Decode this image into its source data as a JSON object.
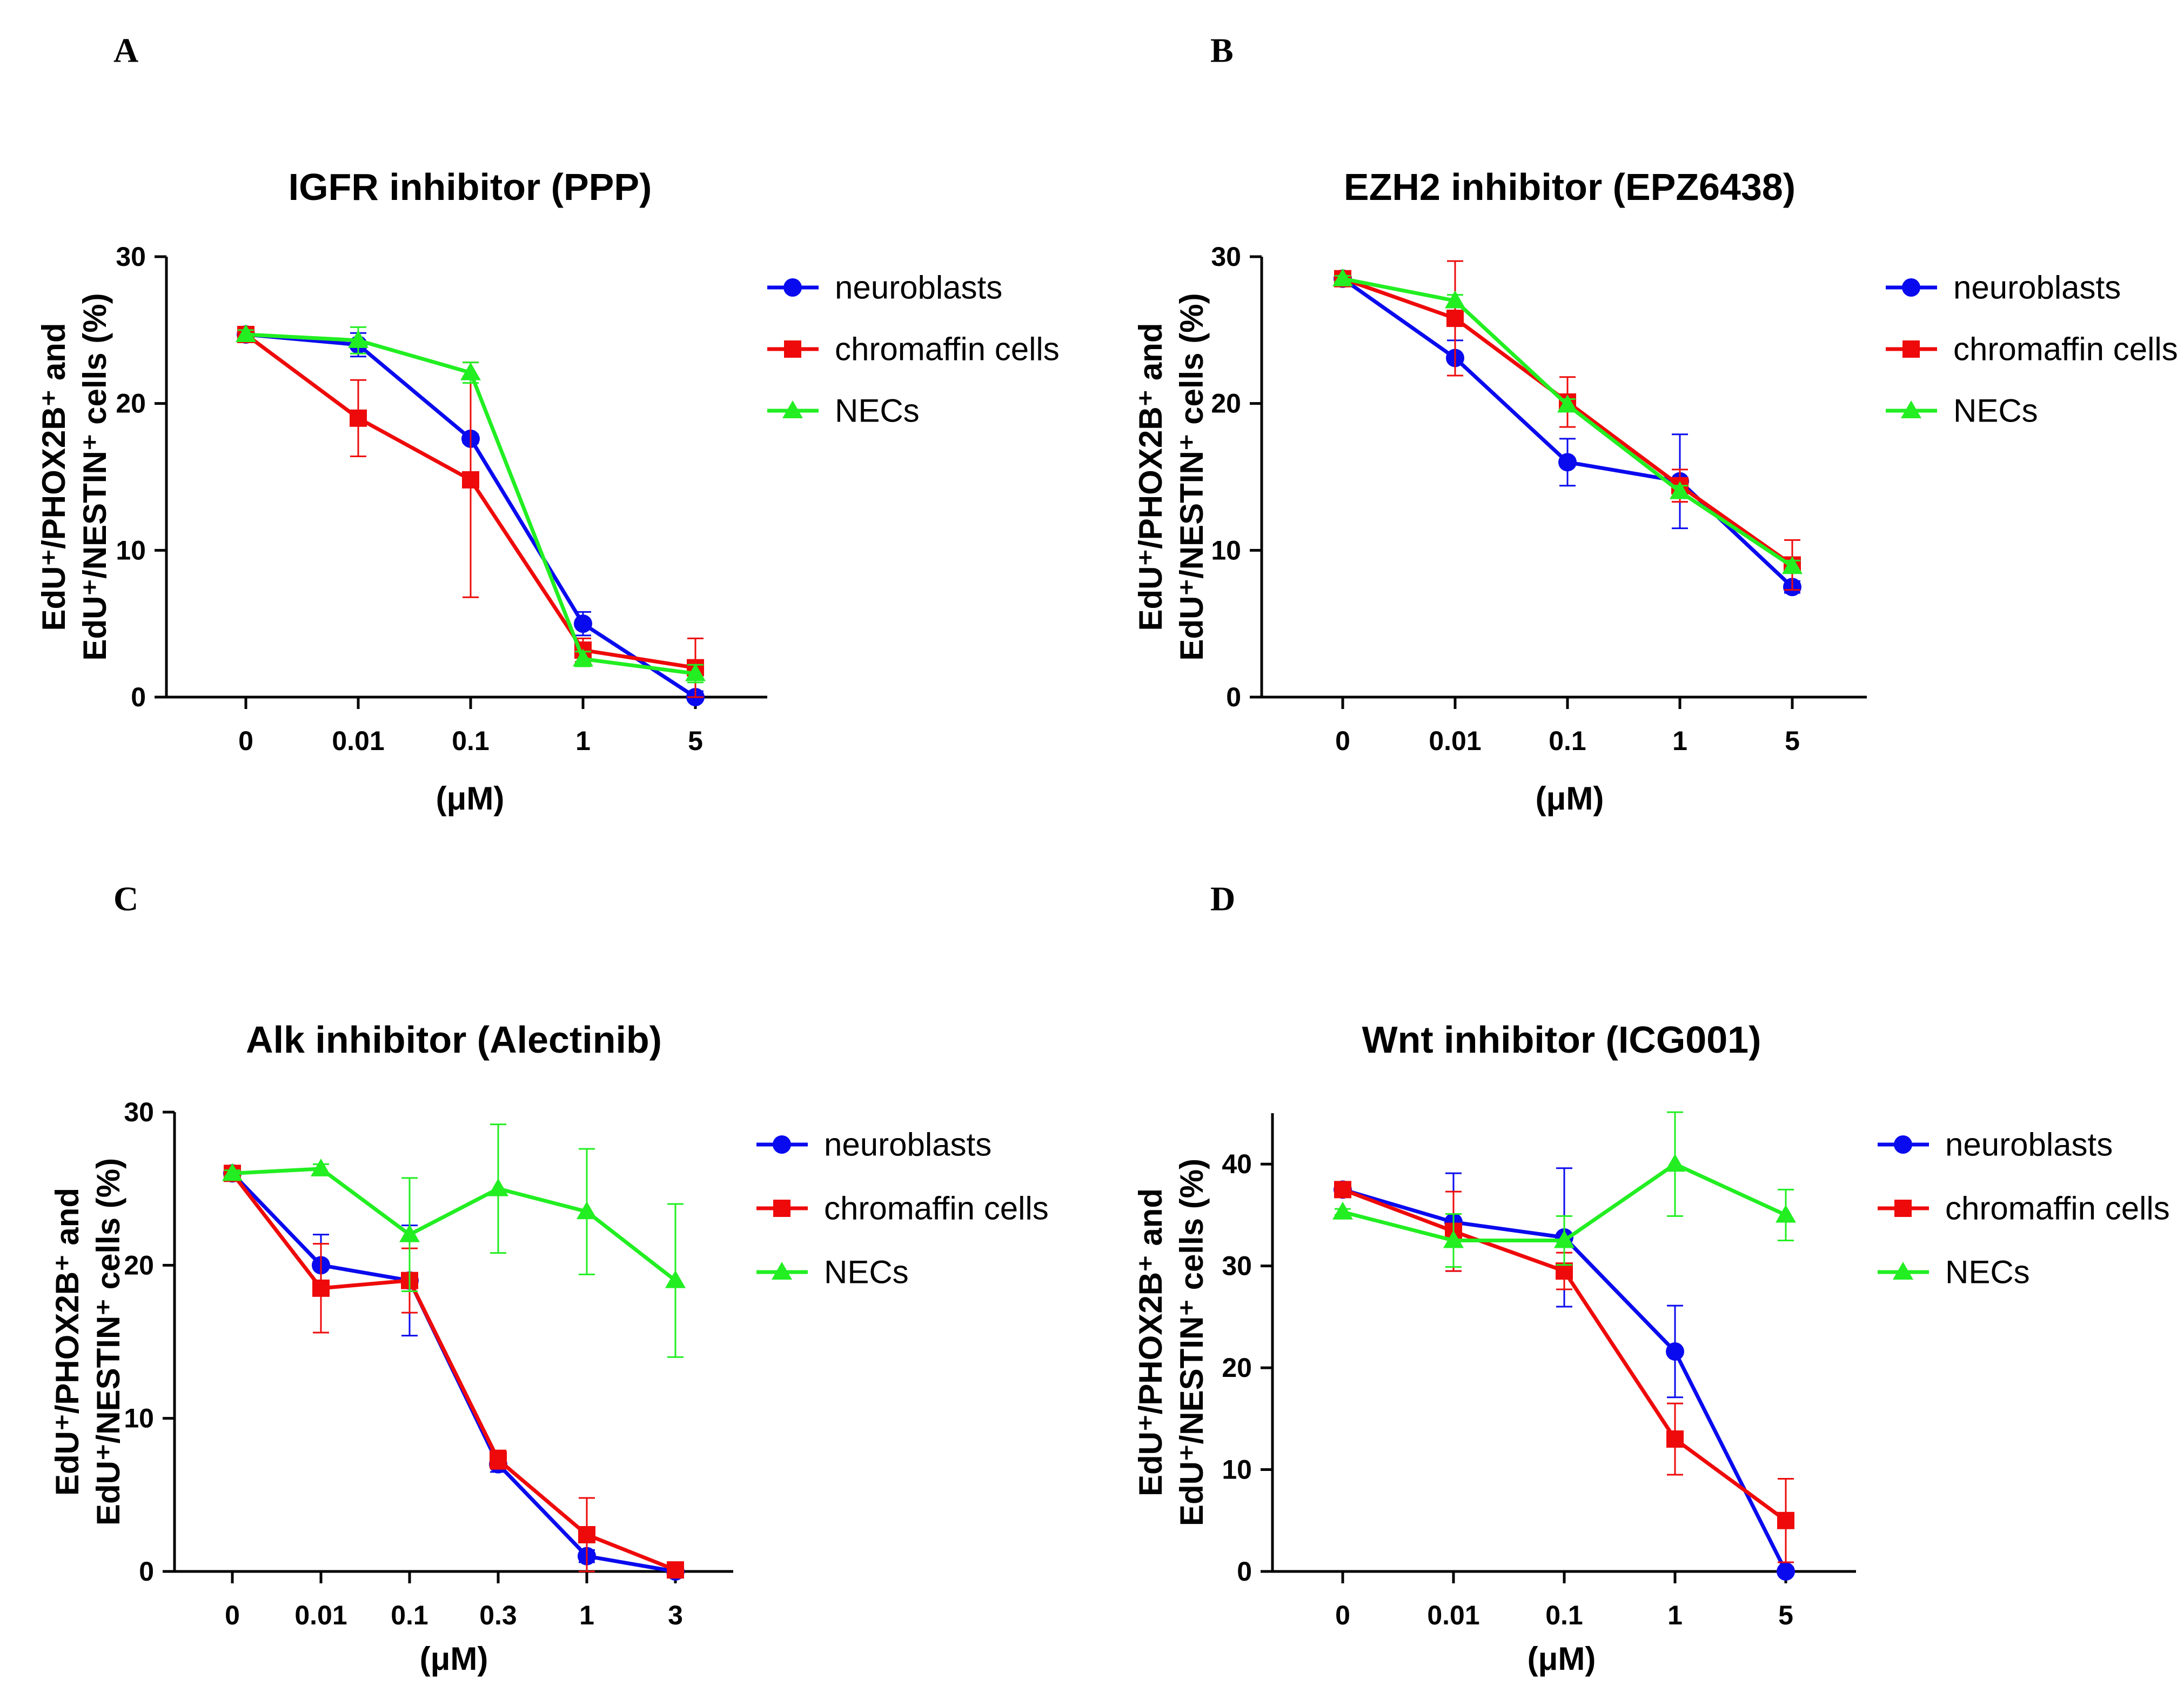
{
  "chart_data": [
    {
      "panel": "A",
      "type": "line",
      "title": "IGFR inhibitor (PPP)",
      "xlabel": "(μM)",
      "ylabel_lines": [
        "EdU⁺/PHOX2B⁺ and",
        "EdU⁺/NESTIN⁺ cells (%)"
      ],
      "categories": [
        "0",
        "0.01",
        "0.1",
        "1",
        "5"
      ],
      "ylim": [
        0,
        30
      ],
      "yticks": [
        0,
        10,
        20,
        30
      ],
      "legend_position": "right",
      "series": [
        {
          "name": "neuroblasts",
          "color": "#0a0aee",
          "marker": "circle",
          "values": [
            24.7,
            24.0,
            17.6,
            5.0,
            0.0
          ],
          "errors": [
            0.3,
            0.8,
            0.3,
            0.8,
            0.4
          ]
        },
        {
          "name": "chromaffin cells",
          "color": "#ee0a0a",
          "marker": "square",
          "values": [
            24.7,
            19.0,
            14.8,
            3.2,
            2.0
          ],
          "errors": [
            0.3,
            2.6,
            8.0,
            0.8,
            2.0
          ]
        },
        {
          "name": "NECs",
          "color": "#22ee22",
          "marker": "triangle",
          "values": [
            24.7,
            24.3,
            22.1,
            2.6,
            1.6
          ],
          "errors": [
            0.3,
            0.9,
            0.7,
            0.5,
            0.6
          ]
        }
      ]
    },
    {
      "panel": "B",
      "type": "line",
      "title": "EZH2 inhibitor (EPZ6438)",
      "xlabel": "(μM)",
      "ylabel_lines": [
        "EdU⁺/PHOX2B⁺ and",
        "EdU⁺/NESTIN⁺ cells (%)"
      ],
      "categories": [
        "0",
        "0.01",
        "0.1",
        "1",
        "5"
      ],
      "ylim": [
        0,
        30
      ],
      "yticks": [
        0,
        10,
        20,
        30
      ],
      "legend_position": "right",
      "series": [
        {
          "name": "neuroblasts",
          "color": "#0a0aee",
          "marker": "circle",
          "values": [
            28.5,
            23.1,
            16.0,
            14.7,
            7.5
          ],
          "errors": [
            0.2,
            1.2,
            1.6,
            3.2,
            0.4
          ]
        },
        {
          "name": "chromaffin cells",
          "color": "#ee0a0a",
          "marker": "square",
          "values": [
            28.5,
            25.8,
            20.1,
            14.4,
            9.0
          ],
          "errors": [
            0.2,
            3.9,
            1.7,
            1.1,
            1.7
          ]
        },
        {
          "name": "NECs",
          "color": "#22ee22",
          "marker": "triangle",
          "values": [
            28.5,
            27.0,
            19.9,
            14.0,
            8.9
          ],
          "errors": [
            0.2,
            0.4,
            0.4,
            0.4,
            0.4
          ]
        }
      ]
    },
    {
      "panel": "C",
      "type": "line",
      "title": "Alk inhibitor (Alectinib)",
      "xlabel": "(μM)",
      "ylabel_lines": [
        "EdU⁺/PHOX2B⁺ and",
        "EdU⁺/NESTIN⁺ cells (%)"
      ],
      "categories": [
        "0",
        "0.01",
        "0.1",
        "0.3",
        "1",
        "3"
      ],
      "ylim": [
        0,
        30
      ],
      "yticks": [
        0,
        10,
        20,
        30
      ],
      "legend_position": "right",
      "series": [
        {
          "name": "neuroblasts",
          "color": "#0a0aee",
          "marker": "circle",
          "values": [
            26.0,
            20.0,
            19.0,
            7.0,
            1.0,
            0.0
          ],
          "errors": [
            0.2,
            2.0,
            3.6,
            0.5,
            0.4,
            0.2
          ]
        },
        {
          "name": "chromaffin cells",
          "color": "#ee0a0a",
          "marker": "square",
          "values": [
            26.0,
            18.5,
            19.0,
            7.3,
            2.4,
            0.1
          ],
          "errors": [
            0.2,
            2.9,
            2.1,
            0.6,
            2.4,
            0.2
          ]
        },
        {
          "name": "NECs",
          "color": "#22ee22",
          "marker": "triangle",
          "values": [
            26.0,
            26.3,
            22.0,
            25.0,
            23.5,
            19.0
          ],
          "errors": [
            0.2,
            0.3,
            3.7,
            4.2,
            4.1,
            5.0
          ]
        }
      ]
    },
    {
      "panel": "D",
      "type": "line",
      "title": "Wnt inhibitor (ICG001)",
      "xlabel": "(μM)",
      "ylabel_lines": [
        "EdU⁺/PHOX2B⁺ and",
        "EdU⁺/NESTIN⁺ cells (%)"
      ],
      "categories": [
        "0",
        "0.01",
        "0.1",
        "1",
        "5"
      ],
      "ylim": [
        0,
        45
      ],
      "yticks": [
        0,
        10,
        20,
        30,
        40
      ],
      "legend_position": "right",
      "series": [
        {
          "name": "neuroblasts",
          "color": "#0a0aee",
          "marker": "circle",
          "values": [
            37.5,
            34.3,
            32.8,
            21.6,
            0.0
          ],
          "errors": [
            0.3,
            4.8,
            6.8,
            4.5,
            0.4
          ]
        },
        {
          "name": "chromaffin cells",
          "color": "#ee0a0a",
          "marker": "square",
          "values": [
            37.5,
            33.4,
            29.5,
            13.0,
            5.0
          ],
          "errors": [
            0.3,
            3.9,
            1.8,
            3.5,
            4.1
          ]
        },
        {
          "name": "NECs",
          "color": "#22ee22",
          "marker": "triangle",
          "values": [
            35.3,
            32.5,
            32.5,
            40.0,
            35.0
          ],
          "errors": [
            0.3,
            2.6,
            2.4,
            5.1,
            2.5
          ]
        }
      ]
    }
  ]
}
